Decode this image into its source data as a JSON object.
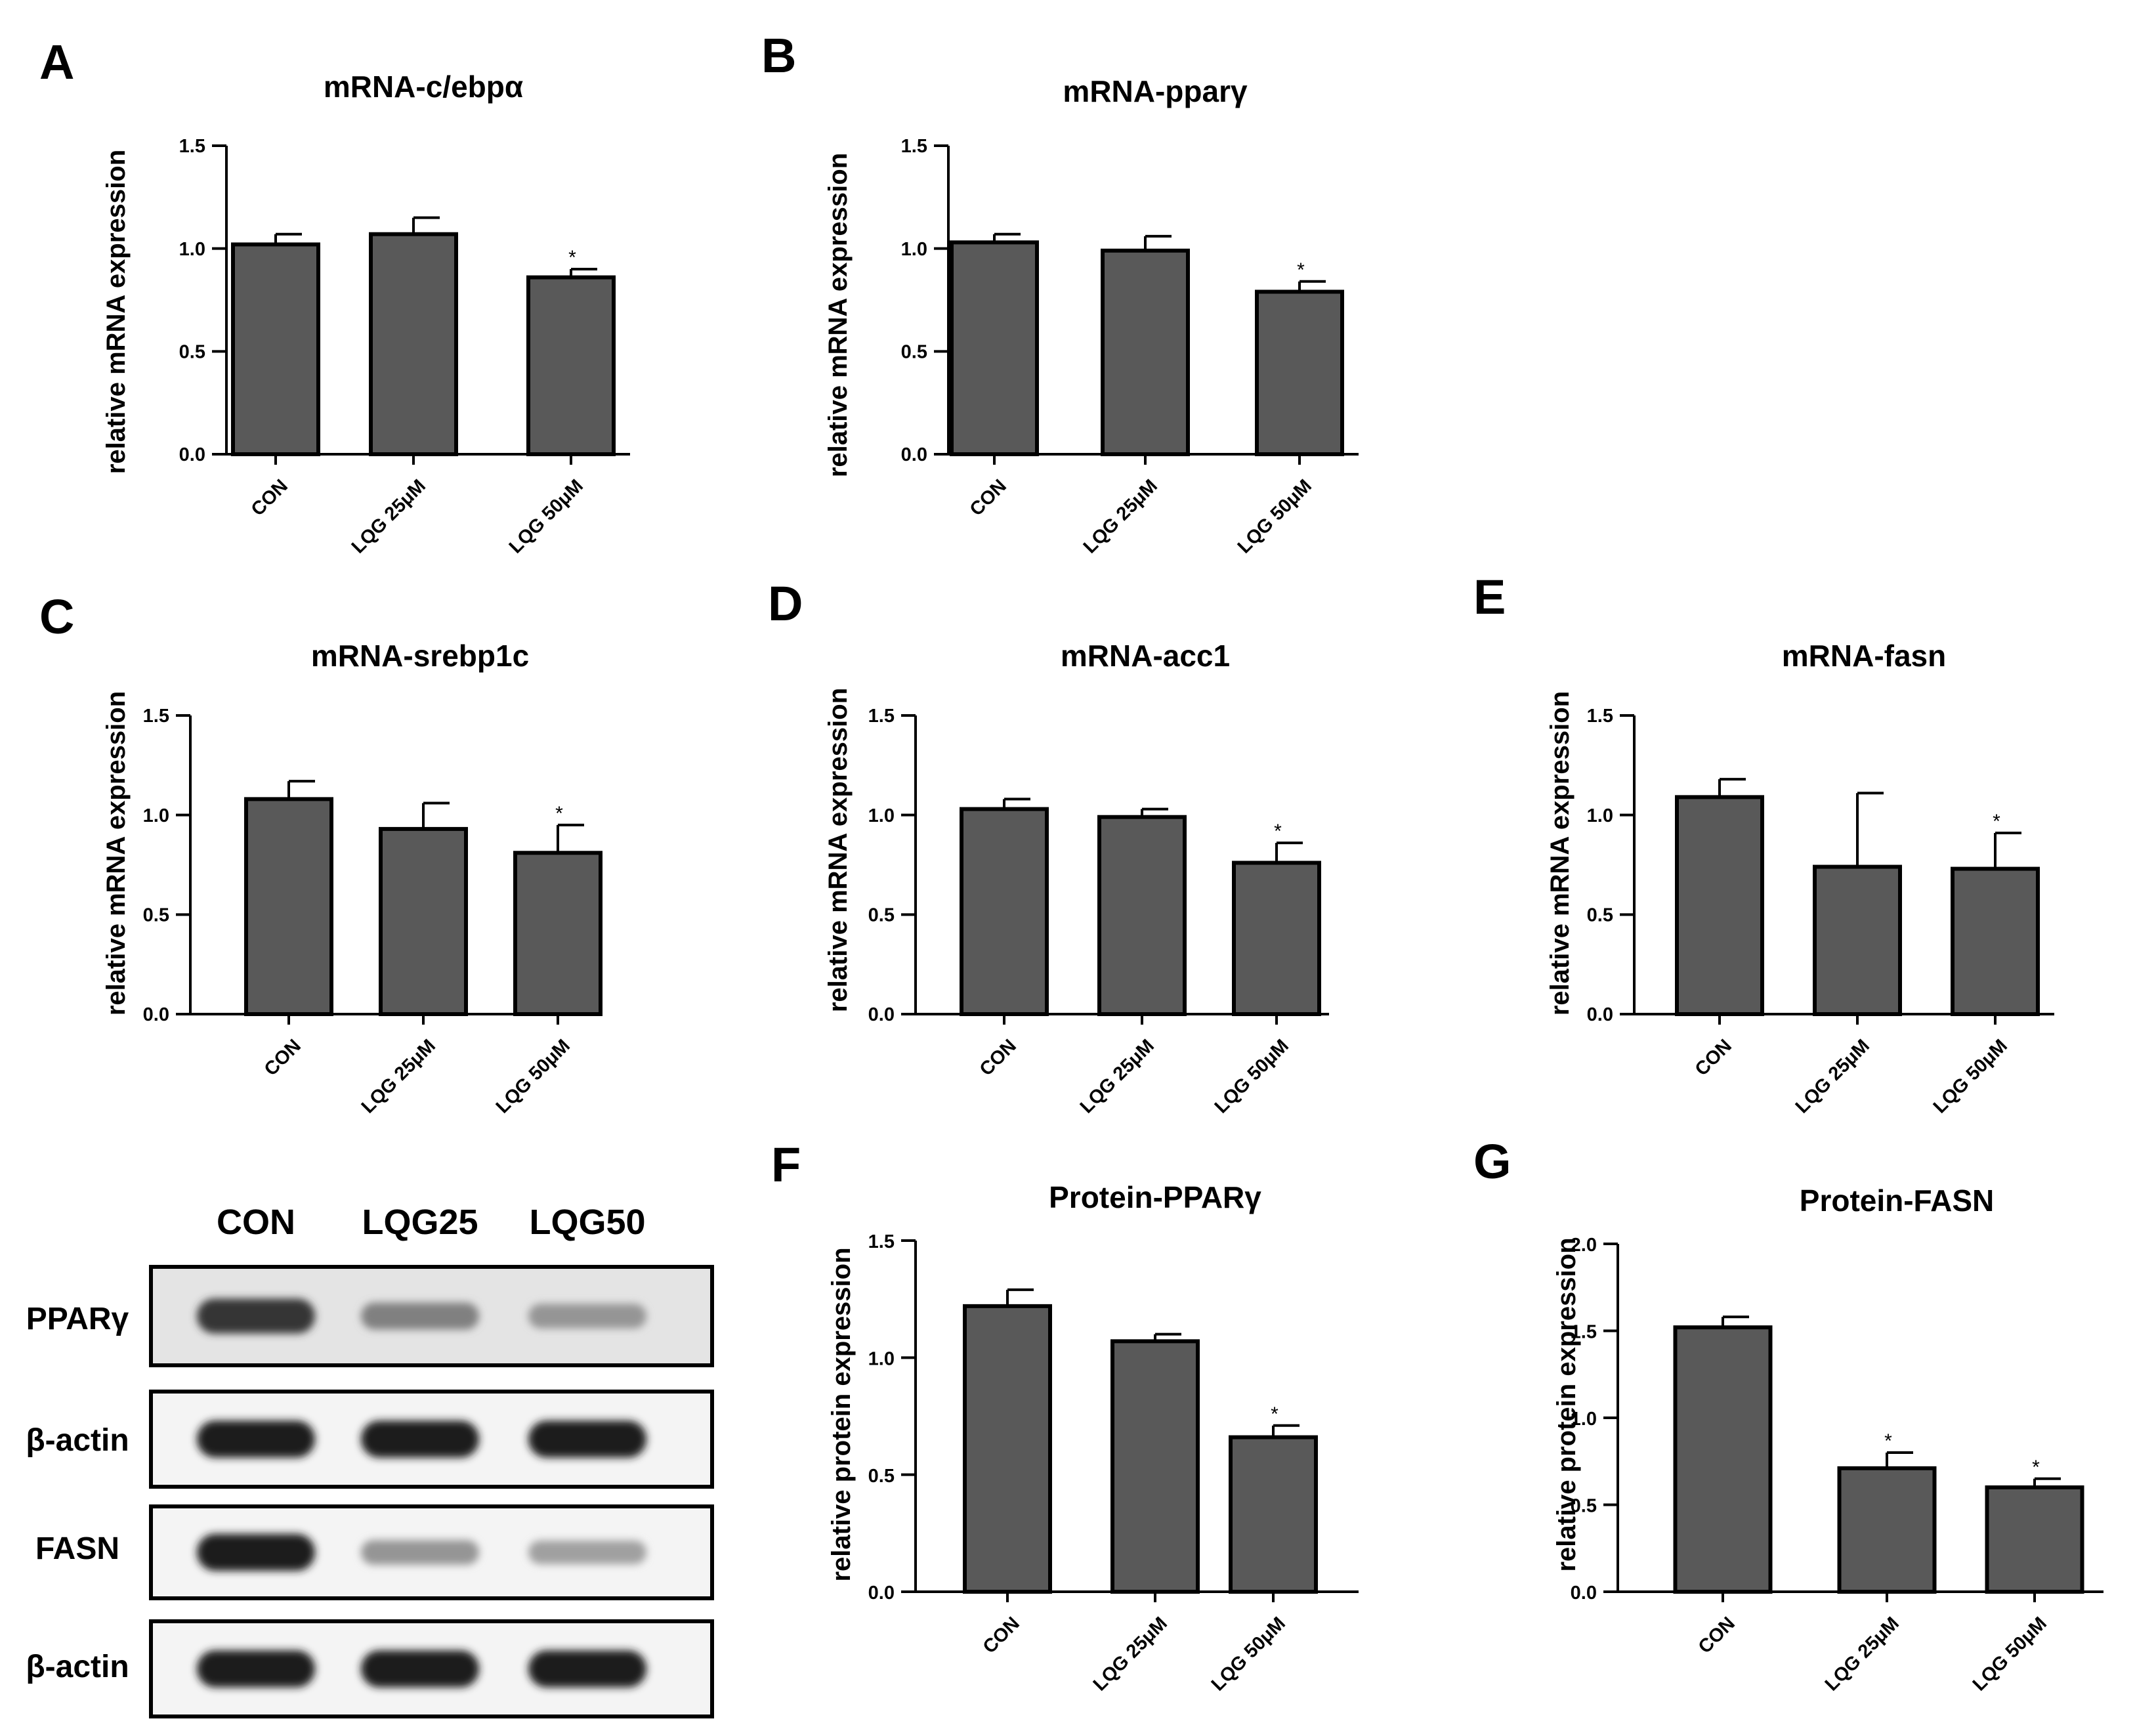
{
  "chart_data": [
    {
      "panel": "A",
      "type": "bar",
      "title": "mRNA-c/ebpα",
      "ylabel": "relative mRNA expression",
      "xlabel": "",
      "categories": [
        "CON",
        "LQG 25μM",
        "LQG 50μM"
      ],
      "values": [
        1.02,
        1.07,
        0.86
      ],
      "errors": [
        0.05,
        0.08,
        0.04
      ],
      "significance": [
        "",
        "",
        "*"
      ],
      "ylim": [
        0,
        1.5
      ],
      "yticks": [
        "0.0",
        "0.5",
        "1.0",
        "1.5"
      ],
      "bar_color": "#595959",
      "grid": false
    },
    {
      "panel": "B",
      "type": "bar",
      "title": "mRNA-pparγ",
      "ylabel": "relative mRNA expression",
      "xlabel": "",
      "categories": [
        "CON",
        "LQG 25μM",
        "LQG 50μM"
      ],
      "values": [
        1.03,
        0.99,
        0.79
      ],
      "errors": [
        0.04,
        0.07,
        0.05
      ],
      "significance": [
        "",
        "",
        "*"
      ],
      "ylim": [
        0,
        1.5
      ],
      "yticks": [
        "0.0",
        "0.5",
        "1.0",
        "1.5"
      ],
      "bar_color": "#595959",
      "grid": false
    },
    {
      "panel": "C",
      "type": "bar",
      "title": "mRNA-srebp1c",
      "ylabel": "relative mRNA expression",
      "xlabel": "",
      "categories": [
        "CON",
        "LQG 25μM",
        "LQG 50μM"
      ],
      "values": [
        1.08,
        0.93,
        0.81
      ],
      "errors": [
        0.09,
        0.13,
        0.14
      ],
      "significance": [
        "",
        "",
        "*"
      ],
      "ylim": [
        0,
        1.5
      ],
      "yticks": [
        "0.0",
        "0.5",
        "1.0",
        "1.5"
      ],
      "bar_color": "#595959",
      "grid": false
    },
    {
      "panel": "D",
      "type": "bar",
      "title": "mRNA-acc1",
      "ylabel": "relative mRNA expression",
      "xlabel": "",
      "categories": [
        "CON",
        "LQG 25μM",
        "LQG 50μM"
      ],
      "values": [
        1.03,
        0.99,
        0.76
      ],
      "errors": [
        0.05,
        0.04,
        0.1
      ],
      "significance": [
        "",
        "",
        "*"
      ],
      "ylim": [
        0,
        1.5
      ],
      "yticks": [
        "0.0",
        "0.5",
        "1.0",
        "1.5"
      ],
      "bar_color": "#595959",
      "grid": false
    },
    {
      "panel": "E",
      "type": "bar",
      "title": "mRNA-fasn",
      "ylabel": "relative mRNA expression",
      "xlabel": "",
      "categories": [
        "CON",
        "LQG 25μM",
        "LQG 50μM"
      ],
      "values": [
        1.09,
        0.74,
        0.73
      ],
      "errors": [
        0.09,
        0.37,
        0.18
      ],
      "significance": [
        "",
        "",
        "*"
      ],
      "ylim": [
        0,
        1.5
      ],
      "yticks": [
        "0.0",
        "0.5",
        "1.0",
        "1.5"
      ],
      "bar_color": "#595959",
      "grid": false
    },
    {
      "panel": "F",
      "type": "bar",
      "title": "Protein-PPARγ",
      "ylabel": "relative protein expression",
      "xlabel": "",
      "categories": [
        "CON",
        "LQG 25μM",
        "LQG 50μM"
      ],
      "values": [
        1.22,
        1.07,
        0.66
      ],
      "errors": [
        0.07,
        0.03,
        0.05
      ],
      "significance": [
        "",
        "",
        "*"
      ],
      "ylim": [
        0,
        1.5
      ],
      "yticks": [
        "0.0",
        "0.5",
        "1.0",
        "1.5"
      ],
      "bar_color": "#595959",
      "grid": false
    },
    {
      "panel": "G",
      "type": "bar",
      "title": "Protein-FASN",
      "ylabel": "relative protein expression",
      "xlabel": "",
      "categories": [
        "CON",
        "LQG 25μM",
        "LQG 50μM"
      ],
      "values": [
        1.52,
        0.71,
        0.6
      ],
      "errors": [
        0.06,
        0.09,
        0.05
      ],
      "significance": [
        "",
        "*",
        "*"
      ],
      "ylim": [
        0,
        2.0
      ],
      "yticks": [
        "0.0",
        "0.5",
        "1.0",
        "1.5",
        "2.0"
      ],
      "bar_color": "#595959",
      "grid": false
    }
  ],
  "western_blot": {
    "lanes": [
      "CON",
      "LQG25",
      "LQG50"
    ],
    "rows": [
      {
        "label": "PPARγ",
        "bands": [
          0.85,
          0.5,
          0.4
        ]
      },
      {
        "label": "β-actin",
        "bands": [
          0.95,
          0.95,
          0.95
        ]
      },
      {
        "label": "FASN",
        "bands": [
          0.95,
          0.4,
          0.35
        ]
      },
      {
        "label": "β-actin",
        "bands": [
          0.95,
          0.95,
          0.95
        ]
      }
    ]
  }
}
